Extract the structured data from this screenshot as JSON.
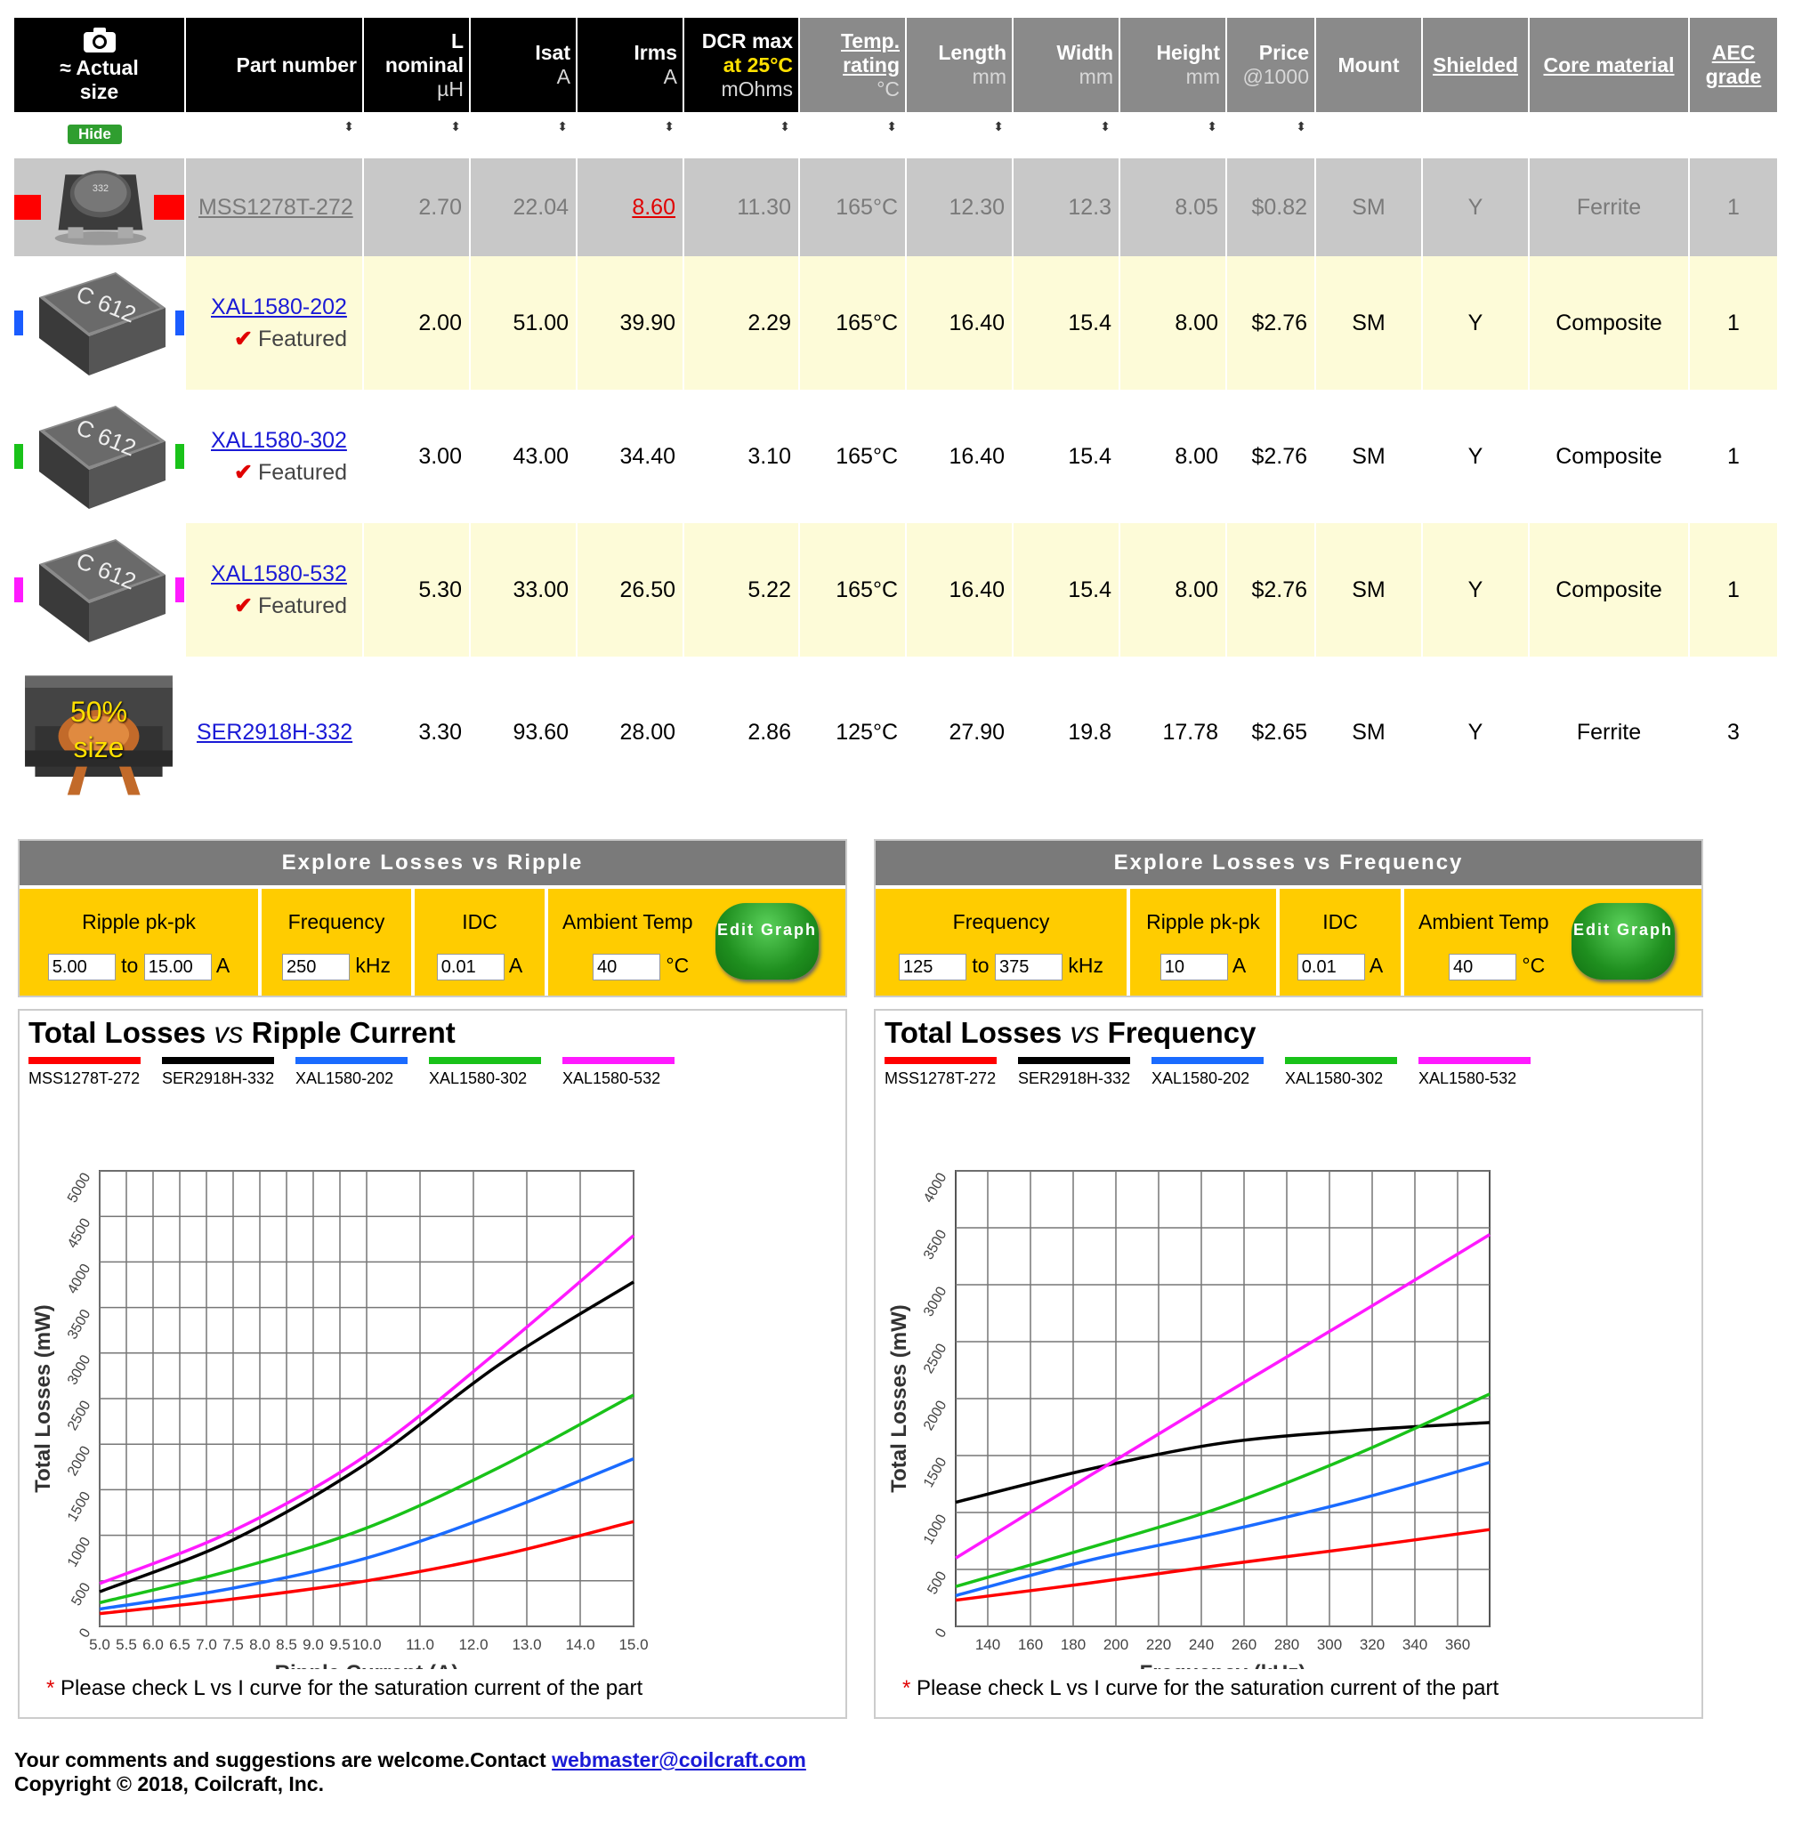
{
  "headers": {
    "image_col": {
      "line1": "≈ Actual",
      "line2": "size"
    },
    "part_number": "Part number",
    "l_nominal": {
      "l1": "L",
      "l2": "nominal",
      "unit": "µH"
    },
    "isat": {
      "label": "Isat",
      "unit": "A"
    },
    "irms": {
      "label": "Irms",
      "unit": "A"
    },
    "dcr": {
      "l1": "DCR max",
      "l2": "at 25°C",
      "unit": "mOhms"
    },
    "temp": {
      "l1": "Temp.",
      "l2": "rating",
      "unit": "°C"
    },
    "length": {
      "label": "Length",
      "unit": "mm"
    },
    "width": {
      "label": "Width",
      "unit": "mm"
    },
    "height": {
      "label": "Height",
      "unit": "mm"
    },
    "price": {
      "label": "Price",
      "unit": "@1000"
    },
    "mount": "Mount",
    "shielded": "Shielded",
    "core": "Core material",
    "aec": {
      "l1": "AEC",
      "l2": "grade"
    }
  },
  "hide_button": "Hide",
  "sort_glyph": "⬍",
  "featured_label": "Featured",
  "rows": [
    {
      "part": "MSS1278T-272",
      "l": "2.70",
      "isat": "22.04",
      "irms": "8.60",
      "dcr": "11.30",
      "temp": "165°C",
      "length": "12.30",
      "width": "12.3",
      "height": "8.05",
      "price": "$0.82",
      "mount": "SM",
      "shielded": "Y",
      "core": "Ferrite",
      "aec": "1",
      "featured": false,
      "color": "#ff0000",
      "bg": "#c8c8c8",
      "style": "gray"
    },
    {
      "part": "XAL1580-202",
      "l": "2.00",
      "isat": "51.00",
      "irms": "39.90",
      "dcr": "2.29",
      "temp": "165°C",
      "length": "16.40",
      "width": "15.4",
      "height": "8.00",
      "price": "$2.76",
      "mount": "SM",
      "shielded": "Y",
      "core": "Composite",
      "aec": "1",
      "featured": true,
      "color": "#1a5cff",
      "bg": "#fdfbd8",
      "style": "normal"
    },
    {
      "part": "XAL1580-302",
      "l": "3.00",
      "isat": "43.00",
      "irms": "34.40",
      "dcr": "3.10",
      "temp": "165°C",
      "length": "16.40",
      "width": "15.4",
      "height": "8.00",
      "price": "$2.76",
      "mount": "SM",
      "shielded": "Y",
      "core": "Composite",
      "aec": "1",
      "featured": true,
      "color": "#19c219",
      "bg": "#ffffff",
      "style": "normal"
    },
    {
      "part": "XAL1580-532",
      "l": "5.30",
      "isat": "33.00",
      "irms": "26.50",
      "dcr": "5.22",
      "temp": "165°C",
      "length": "16.40",
      "width": "15.4",
      "height": "8.00",
      "price": "$2.76",
      "mount": "SM",
      "shielded": "Y",
      "core": "Composite",
      "aec": "1",
      "featured": true,
      "color": "#ff1aff",
      "bg": "#fdfbd8",
      "style": "normal"
    },
    {
      "part": "SER2918H-332",
      "l": "3.30",
      "isat": "93.60",
      "irms": "28.00",
      "dcr": "2.86",
      "temp": "125°C",
      "length": "27.90",
      "width": "19.8",
      "height": "17.78",
      "price": "$2.65",
      "mount": "SM",
      "shielded": "Y",
      "core": "Ferrite",
      "aec": "3",
      "featured": false,
      "color": "#000000",
      "bg": "#ffffff",
      "style": "normal",
      "badge": "50% size"
    }
  ],
  "thumb_marks": {
    "mss": "332",
    "xal": "C 612"
  },
  "ripple_panel": {
    "title": "Explore Losses vs Ripple",
    "ripple_label": "Ripple pk-pk",
    "ripple_from": "5.00",
    "to": "to",
    "ripple_to": "15.00",
    "ripple_unit": "A",
    "freq_label": "Frequency",
    "freq_value": "250",
    "freq_unit": "kHz",
    "idc_label": "IDC",
    "idc_value": "0.01",
    "idc_unit": "A",
    "temp_label": "Ambient Temp",
    "temp_value": "40",
    "temp_unit": "°C",
    "button": "Edit Graph"
  },
  "freq_panel": {
    "title": "Explore Losses vs Frequency",
    "freq_label": "Frequency",
    "freq_from": "125",
    "to": "to",
    "freq_to": "375",
    "freq_unit": "kHz",
    "ripple_label": "Ripple pk-pk",
    "ripple_value": "10",
    "ripple_unit": "A",
    "idc_label": "IDC",
    "idc_value": "0.01",
    "idc_unit": "A",
    "temp_label": "Ambient Temp",
    "temp_value": "40",
    "temp_unit": "°C",
    "button": "Edit Graph"
  },
  "legend": [
    {
      "name": "MSS1278T-272",
      "color": "#ff0000"
    },
    {
      "name": "SER2918H-332",
      "color": "#000000"
    },
    {
      "name": "XAL1580-202",
      "color": "#1a6bff"
    },
    {
      "name": "XAL1580-302",
      "color": "#19c219"
    },
    {
      "name": "XAL1580-532",
      "color": "#ff1aff"
    }
  ],
  "chart_data": [
    {
      "type": "line",
      "title_a": "Total Losses ",
      "title_vs": "vs",
      "title_b": " Ripple Current",
      "xlabel": "Ripple Current (A)",
      "ylabel": "Total Losses (mW)",
      "xlim": [
        5,
        15
      ],
      "ylim": [
        0,
        5000
      ],
      "xticks": [
        "5.0",
        "5.5",
        "6.0",
        "6.5",
        "7.0",
        "7.5",
        "8.0",
        "8.5",
        "9.0",
        "9.5",
        "10.0",
        "11.0",
        "12.0",
        "13.0",
        "14.0",
        "15.0"
      ],
      "yticks": [
        "0",
        "500",
        "1000",
        "1500",
        "2000",
        "2500",
        "3000",
        "3500",
        "4000",
        "4500",
        "5000"
      ],
      "x": [
        5,
        7.5,
        10,
        12.5,
        15
      ],
      "series": [
        {
          "name": "MSS1278T-272",
          "color": "#ff0000",
          "values": [
            140,
            300,
            500,
            780,
            1150
          ]
        },
        {
          "name": "SER2918H-332",
          "color": "#000000",
          "values": [
            380,
            950,
            1790,
            2880,
            3780
          ]
        },
        {
          "name": "XAL1580-202",
          "color": "#1a6bff",
          "values": [
            190,
            420,
            750,
            1250,
            1840
          ]
        },
        {
          "name": "XAL1580-302",
          "color": "#19c219",
          "values": [
            260,
            620,
            1080,
            1750,
            2540
          ]
        },
        {
          "name": "XAL1580-532",
          "color": "#ff1aff",
          "values": [
            470,
            1050,
            1880,
            3040,
            4290
          ]
        }
      ],
      "note": "Please check L vs I curve for the saturation current of the part"
    },
    {
      "type": "line",
      "title_a": "Total Losses ",
      "title_vs": "vs",
      "title_b": " Frequency",
      "xlabel": "Frequency (kHz)",
      "ylabel": "Total Losses (mW)",
      "xlim": [
        125,
        375
      ],
      "ylim": [
        0,
        4000
      ],
      "xticks": [
        "140",
        "160",
        "180",
        "200",
        "220",
        "240",
        "260",
        "280",
        "300",
        "320",
        "340",
        "360"
      ],
      "yticks": [
        "0",
        "500",
        "1000",
        "1500",
        "2000",
        "2500",
        "3000",
        "3500",
        "4000"
      ],
      "x": [
        125,
        187.5,
        250,
        312.5,
        375
      ],
      "series": [
        {
          "name": "MSS1278T-272",
          "color": "#ff0000",
          "values": [
            230,
            380,
            540,
            690,
            850
          ]
        },
        {
          "name": "SER2918H-332",
          "color": "#000000",
          "values": [
            1090,
            1380,
            1610,
            1720,
            1790
          ]
        },
        {
          "name": "XAL1580-202",
          "color": "#1a6bff",
          "values": [
            270,
            580,
            830,
            1110,
            1440
          ]
        },
        {
          "name": "XAL1580-302",
          "color": "#19c219",
          "values": [
            350,
            690,
            1050,
            1510,
            2040
          ]
        },
        {
          "name": "XAL1580-532",
          "color": "#ff1aff",
          "values": [
            600,
            1320,
            2030,
            2730,
            3440
          ]
        }
      ],
      "note": "Please check L vs I curve for the saturation current of the part"
    }
  ],
  "footer": {
    "line1": "Your comments and suggestions are welcome.Contact ",
    "email": "webmaster@coilcraft.com",
    "line2": "Copyright © 2018, Coilcraft, Inc."
  }
}
